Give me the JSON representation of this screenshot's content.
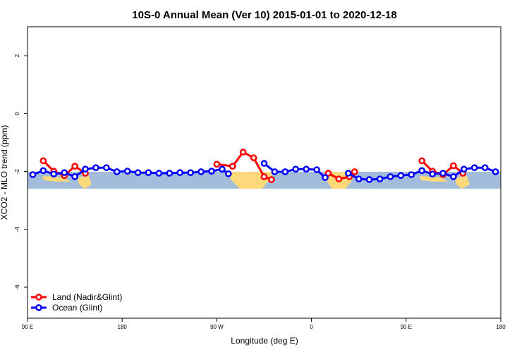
{
  "chart_data": {
    "type": "line",
    "title": "10S-0 Annual Mean (Ver 10)   2015-01-01 to 2020-12-18",
    "x_label": "Longitude (deg E)",
    "y_label": "XCO2 - MLO trend (ppm)",
    "xlim": [
      90,
      540
    ],
    "ylim": [
      -7.07,
      3
    ],
    "xticks": [
      {
        "value": 90,
        "label": "90 E"
      },
      {
        "value": 180,
        "label": "180"
      },
      {
        "value": 270,
        "label": "90 W"
      },
      {
        "value": 360,
        "label": "0"
      },
      {
        "value": 450,
        "label": "90 E"
      },
      {
        "value": 540,
        "label": "180"
      }
    ],
    "yticks": [
      -6,
      -4,
      -2,
      0,
      2
    ],
    "legend": "bottom-left",
    "series": [
      {
        "name": "Land (Nadir&Glint)",
        "color": "#ff0000",
        "x": [
          105,
          115,
          125,
          135,
          145,
          210,
          270,
          285,
          295,
          305,
          315,
          322,
          350,
          376,
          386,
          396,
          401,
          430,
          465,
          475,
          485,
          495,
          504
        ],
        "values": [
          -1.63,
          -1.99,
          -2.14,
          -1.82,
          -2.06,
          null,
          -1.75,
          -1.82,
          -1.33,
          -1.53,
          -2.18,
          -2.28,
          null,
          -2.06,
          -2.26,
          -2.18,
          -2.01,
          null,
          -1.63,
          -1.99,
          -2.11,
          -1.8,
          -2.06
        ]
      },
      {
        "name": "Ocean (Glint)",
        "color": "#0000ff",
        "x": [
          95,
          105,
          115,
          125,
          135,
          145,
          155,
          165,
          175,
          185,
          195,
          205,
          215,
          225,
          235,
          245,
          255,
          265,
          275,
          281,
          295,
          315,
          325,
          335,
          345,
          355,
          365,
          373,
          385,
          395,
          405,
          415,
          425,
          435,
          445,
          455,
          465,
          475,
          485,
          495,
          505,
          515,
          525,
          535
        ],
        "values": [
          -2.11,
          -1.97,
          -2.09,
          -2.04,
          -2.18,
          -1.92,
          -1.87,
          -1.87,
          -2.01,
          -1.99,
          -2.04,
          -2.04,
          -2.06,
          -2.06,
          -2.04,
          -2.04,
          -2.01,
          -1.99,
          -1.92,
          -2.08,
          null,
          -1.72,
          -2.01,
          -2.01,
          -1.92,
          -1.92,
          -1.94,
          -2.21,
          null,
          -2.06,
          -2.26,
          -2.28,
          -2.26,
          -2.18,
          -2.14,
          -2.11,
          -1.97,
          -2.09,
          -2.06,
          -2.18,
          -1.92,
          -1.87,
          -1.87,
          -2.01
        ]
      }
    ]
  }
}
